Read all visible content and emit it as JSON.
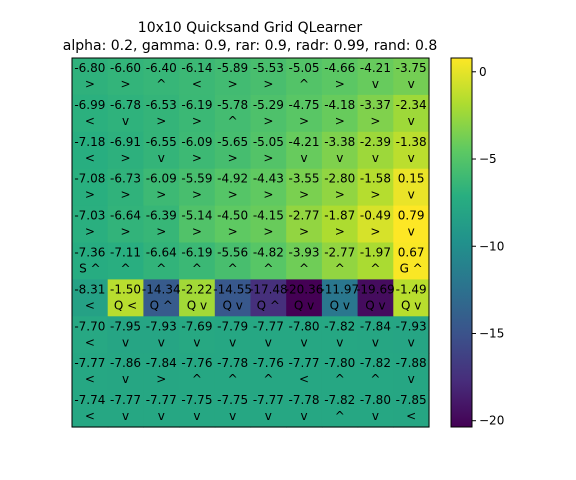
{
  "chart_data": {
    "type": "heatmap",
    "title": "10x10 Quicksand Grid QLearner",
    "subtitle": "alpha: 0.2, gamma: 0.9, rar: 0.9, radr: 0.99, rand: 0.8",
    "rows": 10,
    "cols": 10,
    "values": [
      [
        -6.8,
        -6.6,
        -6.4,
        -6.14,
        -5.89,
        -5.53,
        -5.05,
        -4.66,
        -4.21,
        -3.75
      ],
      [
        -6.99,
        -6.78,
        -6.53,
        -6.19,
        -5.78,
        -5.29,
        -4.75,
        -4.18,
        -3.37,
        -2.34
      ],
      [
        -7.18,
        -6.91,
        -6.55,
        -6.09,
        -5.65,
        -5.05,
        -4.21,
        -3.38,
        -2.39,
        -1.38
      ],
      [
        -7.08,
        -6.73,
        -6.09,
        -5.59,
        -4.92,
        -4.43,
        -3.55,
        -2.8,
        -1.58,
        0.15
      ],
      [
        -7.03,
        -6.64,
        -6.39,
        -5.14,
        -4.5,
        -4.15,
        -2.77,
        -1.87,
        -0.49,
        0.79
      ],
      [
        -7.36,
        -7.11,
        -6.64,
        -6.19,
        -5.56,
        -4.82,
        -3.93,
        -2.77,
        -1.97,
        0.67
      ],
      [
        -8.31,
        -1.5,
        -14.34,
        -2.22,
        -14.55,
        -17.48,
        -20.36,
        -11.97,
        -19.69,
        -1.49
      ],
      [
        -7.7,
        -7.95,
        -7.93,
        -7.69,
        -7.79,
        -7.77,
        -7.8,
        -7.82,
        -7.84,
        -7.93
      ],
      [
        -7.77,
        -7.86,
        -7.84,
        -7.76,
        -7.78,
        -7.76,
        -7.77,
        -7.8,
        -7.82,
        -7.88
      ],
      [
        -7.74,
        -7.77,
        -7.77,
        -7.75,
        -7.75,
        -7.77,
        -7.78,
        -7.82,
        -7.8,
        -7.85
      ]
    ],
    "labels": [
      [
        ">",
        ">",
        "^",
        "<",
        ">",
        ">",
        "^",
        ">",
        "v",
        "v"
      ],
      [
        "<",
        "v",
        ">",
        ">",
        "^",
        ">",
        ">",
        ">",
        ">",
        "v"
      ],
      [
        "<",
        ">",
        "v",
        ">",
        ">",
        ">",
        "v",
        "v",
        "v",
        "v"
      ],
      [
        ">",
        ">",
        ">",
        ">",
        ">",
        ">",
        ">",
        ">",
        ">",
        "v"
      ],
      [
        ">",
        ">",
        ">",
        ">",
        ">",
        ">",
        ">",
        ">",
        ">",
        "v"
      ],
      [
        "S ^",
        "^",
        "^",
        "^",
        "^",
        "^",
        "^",
        "^",
        "^",
        "G ^"
      ],
      [
        "<",
        "Q <",
        "Q ^",
        "Q v",
        "Q v",
        "Q ^",
        "Q v",
        "Q v",
        "Q v",
        "Q v"
      ],
      [
        "<",
        "v",
        "v",
        "v",
        "v",
        "v",
        "v",
        "v",
        "v",
        "v"
      ],
      [
        "<",
        "v",
        ">",
        "^",
        "^",
        "^",
        "<",
        "^",
        "^",
        "v"
      ],
      [
        "<",
        "v",
        "v",
        "v",
        "v",
        "v",
        "v",
        "^",
        "v",
        "<"
      ]
    ],
    "colorbar": {
      "colormap": "viridis",
      "min": -20.36,
      "max": 0.79,
      "ticks": [
        0,
        -5,
        -10,
        -15,
        -20
      ]
    }
  }
}
